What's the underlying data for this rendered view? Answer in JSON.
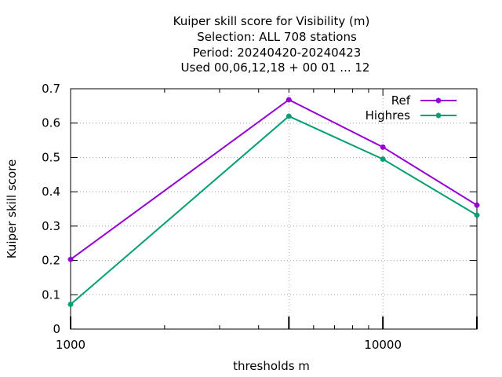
{
  "chart_data": {
    "type": "line",
    "title_lines": [
      "Kuiper skill score  for Visibility (m)",
      "Selection: ALL    708 stations",
      "Period: 20240420-20240423",
      "Used  00,06,12,18 + 00 01 ... 12"
    ],
    "xlabel": "thresholds m",
    "ylabel": "Kuiper skill score",
    "x_scale": "log",
    "xlim": [
      1000,
      20000
    ],
    "ylim": [
      0,
      0.7
    ],
    "x_tick_labels": [
      "1000",
      "10000"
    ],
    "x_major_ticks": [
      1000,
      10000
    ],
    "x_minor_ticks": [
      2000,
      3000,
      4000,
      5000,
      6000,
      7000,
      8000,
      9000,
      20000
    ],
    "x_grid_at": [
      5000,
      10000
    ],
    "y_ticks": [
      0,
      0.1,
      0.2,
      0.3,
      0.4,
      0.5,
      0.6,
      0.7
    ],
    "y_tick_labels": [
      "0",
      "0.1",
      "0.2",
      "0.3",
      "0.4",
      "0.5",
      "0.6",
      "0.7"
    ],
    "grid": true,
    "legend_position": "top-right",
    "x": [
      1000,
      5000,
      10000,
      20000
    ],
    "series": [
      {
        "name": "Ref",
        "color": "#9400d3",
        "values": [
          0.203,
          0.668,
          0.53,
          0.361
        ]
      },
      {
        "name": "Highres",
        "color": "#009e73",
        "values": [
          0.072,
          0.62,
          0.495,
          0.332
        ]
      }
    ]
  }
}
